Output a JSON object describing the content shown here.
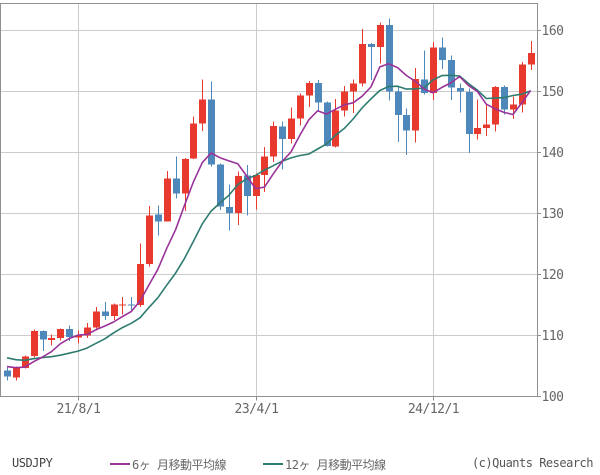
{
  "footer": {
    "copyright": "(c)Quants Research"
  },
  "chart_data": {
    "type": "candlestick",
    "symbol": "USDJPY",
    "interval": "monthly",
    "ylim": [
      100,
      164.5
    ],
    "yticks": [
      100,
      110,
      120,
      130,
      140,
      150,
      160
    ],
    "xticks": [
      {
        "index": 8,
        "label": "21/8/1"
      },
      {
        "index": 28,
        "label": "23/4/1"
      },
      {
        "index": 48,
        "label": "24/12/1"
      }
    ],
    "grid": true,
    "legend_position": "bottom",
    "legend": [
      {
        "label": "6ヶ 月移動平均線",
        "period": 6,
        "color": "#993399"
      },
      {
        "label": "12ヶ 月移動平均線",
        "period": 12,
        "color": "#2e7b70"
      }
    ],
    "colors": {
      "up": "#e8392f",
      "down": "#4e87ba",
      "grid": "#cccccc",
      "frame": "#909090",
      "tick_text": "#666666"
    },
    "pre_period_closes": [
      108.38,
      107.89,
      107.54,
      107.18,
      107.83,
      107.93,
      105.83,
      105.91,
      105.48,
      104.66,
      104.31
    ],
    "candles": {
      "columns": [
        "month",
        "open",
        "high",
        "low",
        "close"
      ],
      "rows": [
        [
          "2020-12",
          104.3,
          104.75,
          102.59,
          103.25
        ],
        [
          "2021-01",
          103.1,
          104.95,
          102.59,
          104.68
        ],
        [
          "2021-02",
          104.7,
          106.7,
          104.55,
          106.57
        ],
        [
          "2021-03",
          106.6,
          110.97,
          106.37,
          110.72
        ],
        [
          "2021-04",
          110.7,
          110.85,
          107.48,
          109.31
        ],
        [
          "2021-05",
          109.3,
          110.2,
          108.34,
          109.55
        ],
        [
          "2021-06",
          109.55,
          111.11,
          109.19,
          111.05
        ],
        [
          "2021-07",
          111.05,
          111.66,
          109.06,
          109.72
        ],
        [
          "2021-08",
          109.7,
          110.8,
          108.72,
          110.02
        ],
        [
          "2021-09",
          110.0,
          112.08,
          109.59,
          111.29
        ],
        [
          "2021-10",
          111.3,
          114.7,
          110.82,
          113.95
        ],
        [
          "2021-11",
          113.95,
          115.52,
          112.53,
          113.17
        ],
        [
          "2021-12",
          113.2,
          115.24,
          112.53,
          115.08
        ],
        [
          "2022-01",
          115.1,
          116.35,
          113.47,
          115.11
        ],
        [
          "2022-02",
          115.1,
          116.34,
          114.16,
          114.99
        ],
        [
          "2022-03",
          115.0,
          125.1,
          114.65,
          121.7
        ],
        [
          "2022-04",
          121.7,
          131.25,
          121.28,
          129.7
        ],
        [
          "2022-05",
          129.85,
          131.35,
          126.36,
          128.67
        ],
        [
          "2022-06",
          128.7,
          137.0,
          128.65,
          135.72
        ],
        [
          "2022-07",
          135.75,
          139.38,
          132.5,
          133.27
        ],
        [
          "2022-08",
          133.25,
          139.09,
          130.4,
          138.96
        ],
        [
          "2022-09",
          139.0,
          145.9,
          138.9,
          144.74
        ],
        [
          "2022-10",
          144.75,
          151.94,
          143.53,
          148.71
        ],
        [
          "2022-11",
          148.7,
          151.6,
          137.67,
          138.07
        ],
        [
          "2022-12",
          138.05,
          138.18,
          130.58,
          131.12
        ],
        [
          "2023-01",
          131.1,
          134.77,
          127.23,
          130.09
        ],
        [
          "2023-02",
          130.1,
          136.91,
          128.08,
          136.17
        ],
        [
          "2023-03",
          136.2,
          137.91,
          129.64,
          132.86
        ],
        [
          "2023-04",
          132.85,
          136.56,
          130.63,
          136.3
        ],
        [
          "2023-05",
          136.3,
          140.93,
          133.5,
          139.34
        ],
        [
          "2023-06",
          139.35,
          145.07,
          138.45,
          144.31
        ],
        [
          "2023-07",
          144.3,
          145.07,
          137.24,
          142.21
        ],
        [
          "2023-08",
          142.2,
          147.37,
          141.51,
          145.54
        ],
        [
          "2023-09",
          145.55,
          149.71,
          144.44,
          149.37
        ],
        [
          "2023-10",
          149.35,
          151.72,
          147.43,
          151.42
        ],
        [
          "2023-11",
          151.4,
          151.91,
          146.67,
          148.17
        ],
        [
          "2023-12",
          148.2,
          148.34,
          140.97,
          141.04
        ],
        [
          "2024-01",
          141.0,
          148.8,
          140.8,
          146.92
        ],
        [
          "2024-02",
          146.9,
          150.89,
          145.9,
          149.98
        ],
        [
          "2024-03",
          150.0,
          151.97,
          146.48,
          151.35
        ],
        [
          "2024-04",
          151.35,
          160.21,
          150.81,
          157.8
        ],
        [
          "2024-05",
          157.8,
          157.99,
          151.86,
          157.31
        ],
        [
          "2024-06",
          157.3,
          161.28,
          154.55,
          160.88
        ],
        [
          "2024-07",
          160.9,
          161.95,
          148.51,
          149.98
        ],
        [
          "2024-08",
          150.0,
          150.88,
          141.7,
          146.17
        ],
        [
          "2024-09",
          146.15,
          147.21,
          139.58,
          143.63
        ],
        [
          "2024-10",
          143.6,
          153.88,
          141.65,
          152.03
        ],
        [
          "2024-11",
          152.0,
          156.74,
          149.47,
          149.77
        ],
        [
          "2024-12",
          149.75,
          158.08,
          148.64,
          157.2
        ],
        [
          "2025-01",
          157.2,
          158.87,
          153.71,
          155.19
        ],
        [
          "2025-02",
          155.2,
          155.89,
          148.57,
          150.63
        ],
        [
          "2025-03",
          150.6,
          151.3,
          146.54,
          149.96
        ],
        [
          "2025-04",
          149.95,
          150.49,
          139.89,
          143.07
        ],
        [
          "2025-05",
          143.05,
          148.65,
          142.12,
          144.02
        ],
        [
          "2025-06",
          144.0,
          148.03,
          142.68,
          144.62
        ],
        [
          "2025-07",
          144.6,
          150.92,
          143.46,
          150.75
        ],
        [
          "2025-08",
          150.75,
          151.0,
          146.21,
          147.05
        ],
        [
          "2025-09",
          147.05,
          149.14,
          145.49,
          147.9
        ],
        [
          "2025-10",
          147.9,
          154.8,
          146.58,
          154.45
        ],
        [
          "2025-11",
          154.45,
          158.3,
          153.5,
          156.3
        ]
      ]
    },
    "ma_note": "6-month and 12-month simple moving averages of monthly closes; pre_period_closes are the Jan-Nov 2020 closes used to seed the averages at the left edge"
  }
}
